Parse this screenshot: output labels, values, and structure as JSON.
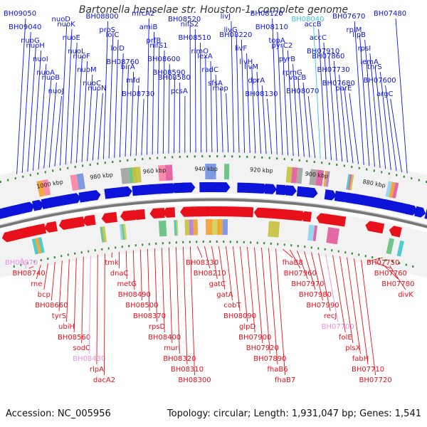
{
  "title": "Bartonella henselae str. Houston-1, complete genome",
  "accession": "Accession: NC_005956",
  "summary": "Topology: circular; Length: 1,931,047 bp; Genes: 1,541",
  "colors": {
    "forward": "#0b14d8",
    "reverse": "#e8101a",
    "rna": "#e98fcc",
    "highlight_fwd": "#38c8d8",
    "highlight_rev": "#e890e0",
    "tick": "#2a8a2a",
    "backbone": "#777777"
  },
  "scale_labels": [
    "1000 kbp",
    "980 kbp",
    "960 kbp",
    "940 kbp",
    "920 kbp",
    "900 kbp",
    "880 kbp"
  ],
  "top_labels": [
    "BH09050",
    "BH09040",
    "nuoG",
    "nuoH",
    "nuoI",
    "nuoA",
    "nuoB",
    "nuoJ",
    "nuoD",
    "nuoK",
    "nuoE",
    "nuoL",
    "nuoF",
    "nuoM",
    "nuoC",
    "nuoN",
    "BH08800",
    "proS",
    "lolC",
    "lolD",
    "BH08760",
    "birA",
    "mfd",
    "BH08730",
    "mrcA2",
    "amiB",
    "prfB",
    "nifS1",
    "BH08600",
    "BH08590",
    "BH08580",
    "pcsA",
    "BH08520",
    "nifS2",
    "BH08510",
    "rimO",
    "lexA",
    "radC",
    "sfsA",
    "map",
    "livJ",
    "livG",
    "BH08220",
    "livF",
    "livH",
    "livM",
    "dprA",
    "BH08130",
    "BH08120",
    "BH08110",
    "topA",
    "pyrC2",
    "pyrB",
    "rpmG",
    "vacB",
    "BH08070",
    "BH08040",
    "accB",
    "accC",
    "BH07910",
    "BH07860",
    "BH07730",
    "BH07680",
    "parE",
    "BH07670",
    "rplM",
    "lipB",
    "rpsI",
    "lemA",
    "thrS",
    "BH07600",
    "argC",
    "BH07480"
  ],
  "bottom_labels": [
    "BH08970",
    "BH08740",
    "rne",
    "bcp",
    "BH08660",
    "tyrS",
    "ubiH",
    "BH08560",
    "sodC",
    "BH08430",
    "rlpA",
    "dacA2",
    "tmk",
    "dnaC",
    "metG",
    "BH08490",
    "BH08500",
    "BH08370",
    "rpsD",
    "BH08400",
    "murI",
    "BH08320",
    "BH08310",
    "BH08300",
    "BH08330",
    "BH08210",
    "gatC",
    "gatA",
    "cobT",
    "BH08090",
    "glpD",
    "BH07900",
    "BH07920",
    "BH07890",
    "fhaB6",
    "fhaB7",
    "fhaB8",
    "BH07960",
    "BH07970",
    "BH07980",
    "BH07990",
    "recJ",
    "BH07700",
    "folE",
    "plsX",
    "fabH",
    "BH07710",
    "BH07720",
    "BH07750",
    "BH07760",
    "BH07780",
    "divK"
  ]
}
